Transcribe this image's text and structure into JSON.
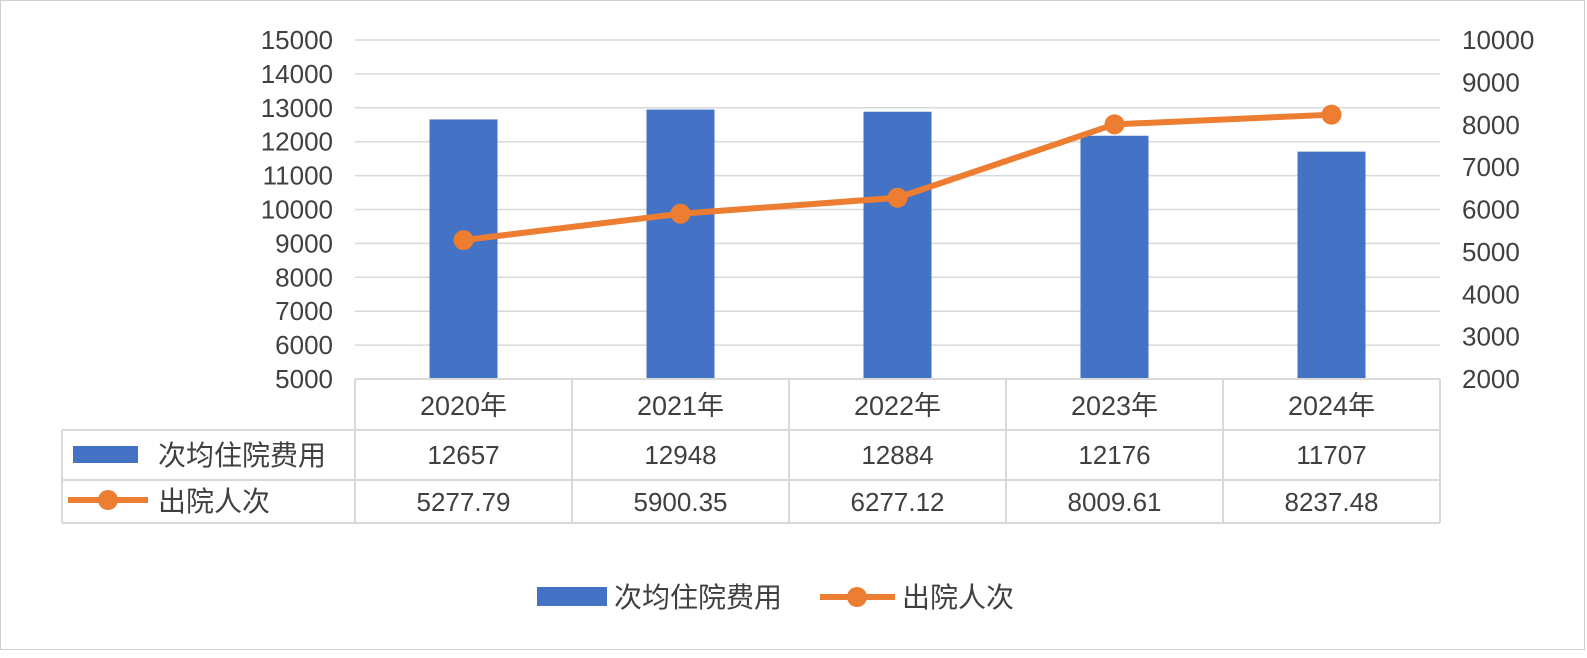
{
  "chart_data": {
    "type": "bar+line",
    "categories": [
      "2020年",
      "2021年",
      "2022年",
      "2023年",
      "2024年"
    ],
    "series": [
      {
        "name": "次均住院费用",
        "type": "bar",
        "axis": "left",
        "color": "#4472C4",
        "values": [
          12657,
          12948,
          12884,
          12176,
          11707
        ],
        "labels": [
          "12657",
          "12948",
          "12884",
          "12176",
          "11707"
        ]
      },
      {
        "name": "出院人次",
        "type": "line",
        "axis": "right",
        "color": "#ED7D31",
        "values": [
          5277.79,
          5900.35,
          6277.12,
          8009.61,
          8237.48
        ],
        "labels": [
          "5277.79",
          "5900.35",
          "6277.12",
          "8009.61",
          "8237.48"
        ]
      }
    ],
    "left_axis": {
      "min": 5000,
      "max": 15000,
      "step": 1000,
      "ticks": [
        "5000",
        "6000",
        "7000",
        "8000",
        "9000",
        "10000",
        "11000",
        "12000",
        "13000",
        "14000",
        "15000"
      ]
    },
    "right_axis": {
      "min": 2000,
      "max": 10000,
      "step": 1000,
      "ticks": [
        "2000",
        "3000",
        "4000",
        "5000",
        "6000",
        "7000",
        "8000",
        "9000",
        "10000"
      ]
    },
    "grid": true,
    "data_table": true,
    "legend_position": "bottom"
  }
}
